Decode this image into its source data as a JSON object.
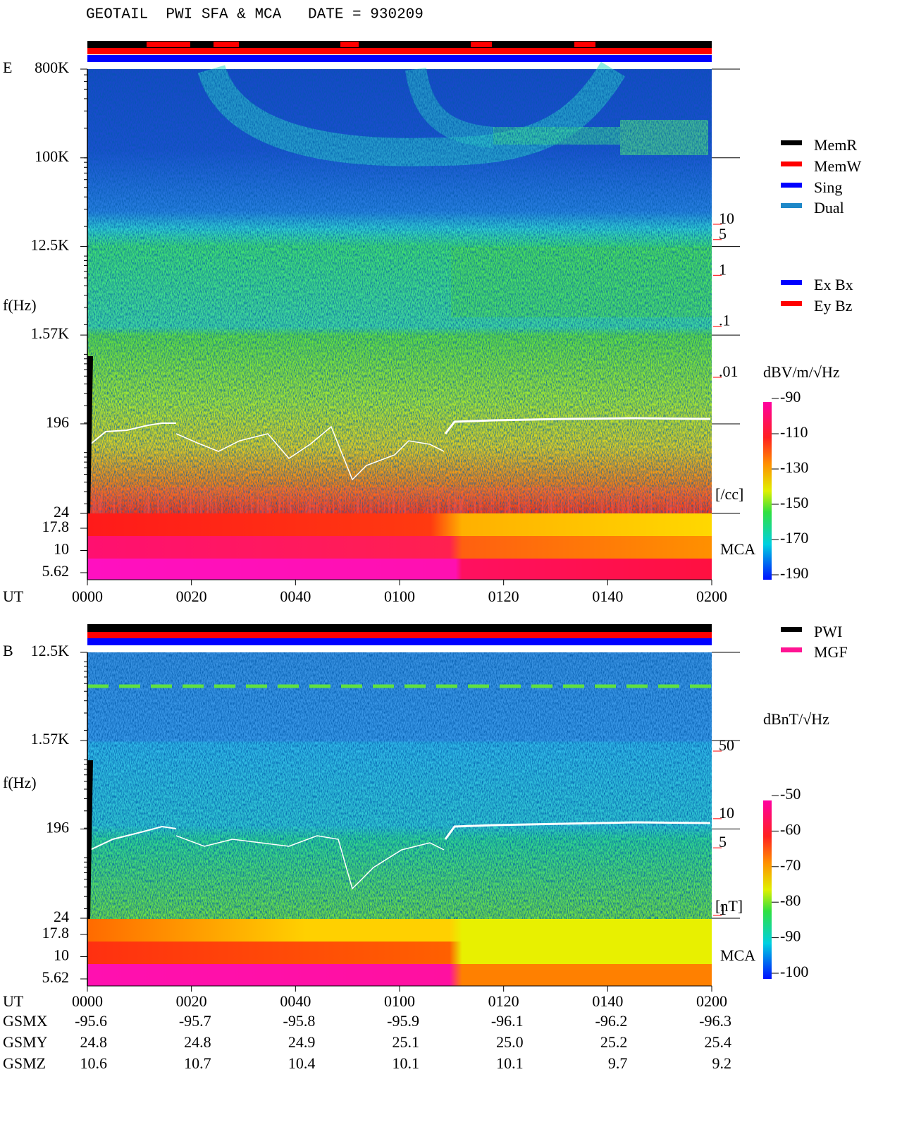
{
  "header": {
    "title": "GEOTAIL  PWI SFA & MCA   DATE = 930209"
  },
  "chart_data": [
    {
      "type": "spectrogram",
      "panel_label": "E",
      "y_label": "f(Hz)",
      "x_label": "UT",
      "scale": "log",
      "ylim": [
        24,
        800000
      ],
      "yticks": [
        {
          "value": 800000,
          "label": "800K"
        },
        {
          "value": 100000,
          "label": "100K"
        },
        {
          "value": 12500,
          "label": "12.5K"
        },
        {
          "value": 1570,
          "label": "1.57K"
        },
        196,
        24
      ],
      "mca_label": "MCA",
      "mca_channels": [
        17.8,
        10,
        5.62
      ],
      "xlim": [
        0,
        120
      ],
      "xticks": [
        {
          "value": 0,
          "label": "0000"
        },
        {
          "value": 20,
          "label": "0020"
        },
        {
          "value": 40,
          "label": "0040"
        },
        {
          "value": 60,
          "label": "0100"
        },
        {
          "value": 80,
          "label": "0120"
        },
        {
          "value": 100,
          "label": "0140"
        },
        {
          "value": 120,
          "label": "0200"
        }
      ],
      "density_axis": {
        "label": "[/cc]",
        "color": "#ff0000",
        "lim": [
          0.01,
          10
        ],
        "ticks": [
          10,
          5,
          1,
          {
            "value": 0.1,
            "label": ".1"
          },
          {
            "value": 0.01,
            "label": ".01"
          }
        ]
      },
      "colorbar": {
        "label": "dBV/m/√Hz",
        "lim": [
          -190,
          -90
        ],
        "ticks": [
          -90,
          -110,
          -130,
          -150,
          -170,
          -190
        ]
      },
      "legend": [
        {
          "name": "MemR",
          "color": "#000000"
        },
        {
          "name": "MemW",
          "color": "#ff0000"
        },
        {
          "name": "Sing",
          "color": "#0000ff"
        },
        {
          "name": "Dual",
          "color": "#1e88c8"
        }
      ],
      "legend2": [
        {
          "name": "Ex Bx",
          "color": "#0000ff"
        },
        {
          "name": "Ey Bz",
          "color": "#ff0000"
        }
      ]
    },
    {
      "type": "spectrogram",
      "panel_label": "B",
      "y_label": "f(Hz)",
      "x_label": "UT",
      "scale": "log",
      "ylim": [
        24,
        12500
      ],
      "yticks": [
        {
          "value": 12500,
          "label": "12.5K"
        },
        {
          "value": 1570,
          "label": "1.57K"
        },
        196,
        24
      ],
      "mca_label": "MCA",
      "mca_channels": [
        17.8,
        10,
        5.62
      ],
      "xlim": [
        0,
        120
      ],
      "xticks": [
        {
          "value": 0,
          "label": "0000"
        },
        {
          "value": 20,
          "label": "0020"
        },
        {
          "value": 40,
          "label": "0040"
        },
        {
          "value": 60,
          "label": "0100"
        },
        {
          "value": 80,
          "label": "0120"
        },
        {
          "value": 100,
          "label": "0140"
        },
        {
          "value": 120,
          "label": "0200"
        }
      ],
      "density_axis": {
        "label": "[nT]",
        "color": "#ff0000",
        "lim": [
          1,
          50
        ],
        "ticks": [
          50,
          10,
          5,
          1
        ]
      },
      "colorbar": {
        "label": "dBnT/√Hz",
        "lim": [
          -100,
          -50
        ],
        "ticks": [
          -50,
          -60,
          -70,
          -80,
          -90,
          -100
        ]
      },
      "legend": [
        {
          "name": "PWI",
          "color": "#000000"
        },
        {
          "name": "MGF",
          "color": "#ff1493"
        }
      ]
    }
  ],
  "ephemeris": {
    "rows": [
      {
        "name": "GSMX",
        "values": [
          -95.6,
          -95.7,
          -95.8,
          -95.9,
          -96.1,
          -96.2,
          -96.3
        ]
      },
      {
        "name": "GSMY",
        "values": [
          24.8,
          24.8,
          24.9,
          25.1,
          {
            "value": 25,
            "label": "25.0"
          },
          25.2,
          25.4
        ]
      },
      {
        "name": "GSMZ",
        "values": [
          10.6,
          10.7,
          10.4,
          10.1,
          10.1,
          9.7,
          9.2
        ]
      }
    ]
  }
}
